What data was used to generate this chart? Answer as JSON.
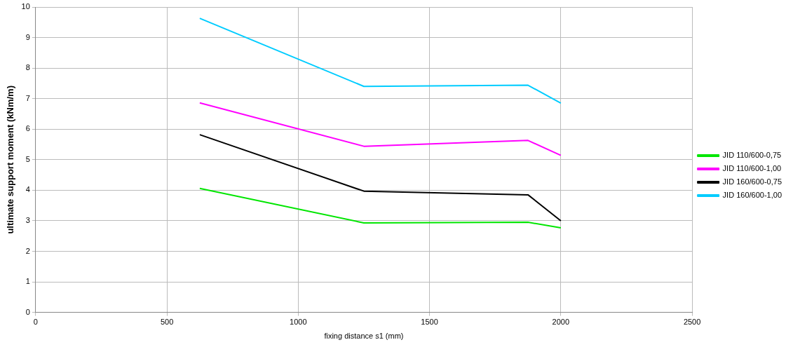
{
  "chart_data": {
    "type": "line",
    "xlabel": "fixing distance s1 (mm)",
    "ylabel": "ultimate support moment (kNm/m)",
    "x": [
      625,
      1250,
      1875,
      2000
    ],
    "series": [
      {
        "name": "JID 110/600-0,75",
        "color": "#00e600",
        "values": [
          4.06,
          2.93,
          2.95,
          2.77
        ]
      },
      {
        "name": "JID 110/600-1,00",
        "color": "#ff00ff",
        "values": [
          6.86,
          5.44,
          5.63,
          5.14
        ]
      },
      {
        "name": "JID 160/600-0,75",
        "color": "#000000",
        "values": [
          5.82,
          3.97,
          3.85,
          3.0
        ]
      },
      {
        "name": "JID 160/600-1,00",
        "color": "#00ccff",
        "values": [
          9.63,
          7.4,
          7.44,
          6.85
        ]
      }
    ],
    "xlim": [
      0,
      2500
    ],
    "xticks": [
      0,
      500,
      1000,
      1500,
      2000,
      2500
    ],
    "ylim": [
      0,
      10
    ],
    "yticks": [
      0,
      1,
      2,
      3,
      4,
      5,
      6,
      7,
      8,
      9,
      10
    ],
    "grid": true,
    "legend": "right",
    "marker": "none",
    "line_style": "solid"
  }
}
